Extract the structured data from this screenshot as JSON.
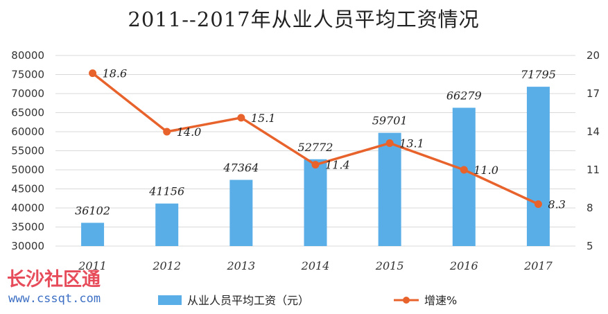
{
  "chart_data": {
    "type": "bar+line",
    "title": "2011--2017年从业人员平均工资情况",
    "categories": [
      "2011",
      "2012",
      "2013",
      "2014",
      "2015",
      "2016",
      "2017"
    ],
    "series": [
      {
        "name": "从业人员平均工资（元）",
        "type": "bar",
        "axis": "left",
        "color": "#5aaee8",
        "values": [
          36102,
          41156,
          47364,
          52772,
          59701,
          66279,
          71795
        ],
        "labels": [
          "36102",
          "41156",
          "47364",
          "52772",
          "59701",
          "66279",
          "71795"
        ]
      },
      {
        "name": "增速%",
        "type": "line",
        "axis": "right",
        "color": "#e8622c",
        "values": [
          18.6,
          14.0,
          15.1,
          11.4,
          13.1,
          11.0,
          8.3
        ],
        "labels": [
          "18.6",
          "14.0",
          "15.1",
          "11.4",
          "13.1",
          "11.0",
          "8.3"
        ]
      }
    ],
    "left_axis": {
      "ylim": [
        30000,
        80000
      ],
      "ticks": [
        "30000",
        "35000",
        "40000",
        "45000",
        "50000",
        "55000",
        "60000",
        "65000",
        "70000",
        "75000",
        "80000"
      ]
    },
    "right_axis": {
      "ylim": [
        5,
        20
      ],
      "ticks": [
        "5",
        "8",
        "11",
        "14",
        "17",
        "20"
      ]
    },
    "grid": true,
    "legend_position": "bottom-center"
  },
  "watermark": {
    "text": "长沙社区通",
    "url": "www.cssqt.com"
  }
}
